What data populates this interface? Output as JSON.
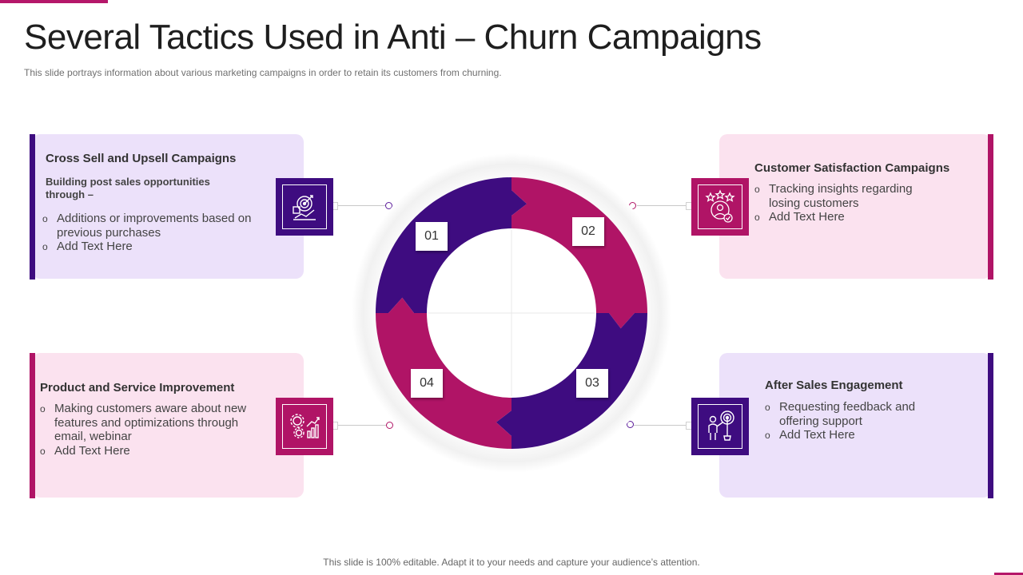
{
  "title": "Several Tactics Used in Anti – Churn Campaigns",
  "subtitle": "This slide portrays information  about various  marketing campaigns in order to retain its customers from churning.",
  "footer": "This slide is 100% editable. Adapt it to your needs and capture your audience’s attention.",
  "colors": {
    "purple": "#3e0c80",
    "magenta": "#b01466",
    "lavender": "#ece1fa",
    "pink": "#fbe2ef"
  },
  "steps": [
    {
      "number": "01",
      "color": "purple",
      "icon": "target-chart-icon"
    },
    {
      "number": "02",
      "color": "magenta",
      "icon": "customer-rating-icon"
    },
    {
      "number": "03",
      "color": "purple",
      "icon": "person-target-icon"
    },
    {
      "number": "04",
      "color": "magenta",
      "icon": "gears-growth-icon"
    }
  ],
  "cards": {
    "cross_sell": {
      "title": "Cross Sell and Upsell Campaigns",
      "subheading": "Building post sales opportunities through –",
      "bullets": [
        "Additions or improvements based on previous purchases",
        "Add Text Here"
      ]
    },
    "customer_satisfaction": {
      "title": "Customer Satisfaction Campaigns",
      "bullets": [
        "Tracking insights regarding losing customers",
        "Add Text Here"
      ]
    },
    "product_service": {
      "title": "Product and Service Improvement",
      "bullets": [
        "Making customers aware about new features and optimizations through email, webinar",
        "Add Text Here"
      ]
    },
    "after_sales": {
      "title": "After Sales Engagement",
      "bullets": [
        "Requesting feedback and offering support",
        "Add Text Here"
      ]
    }
  }
}
